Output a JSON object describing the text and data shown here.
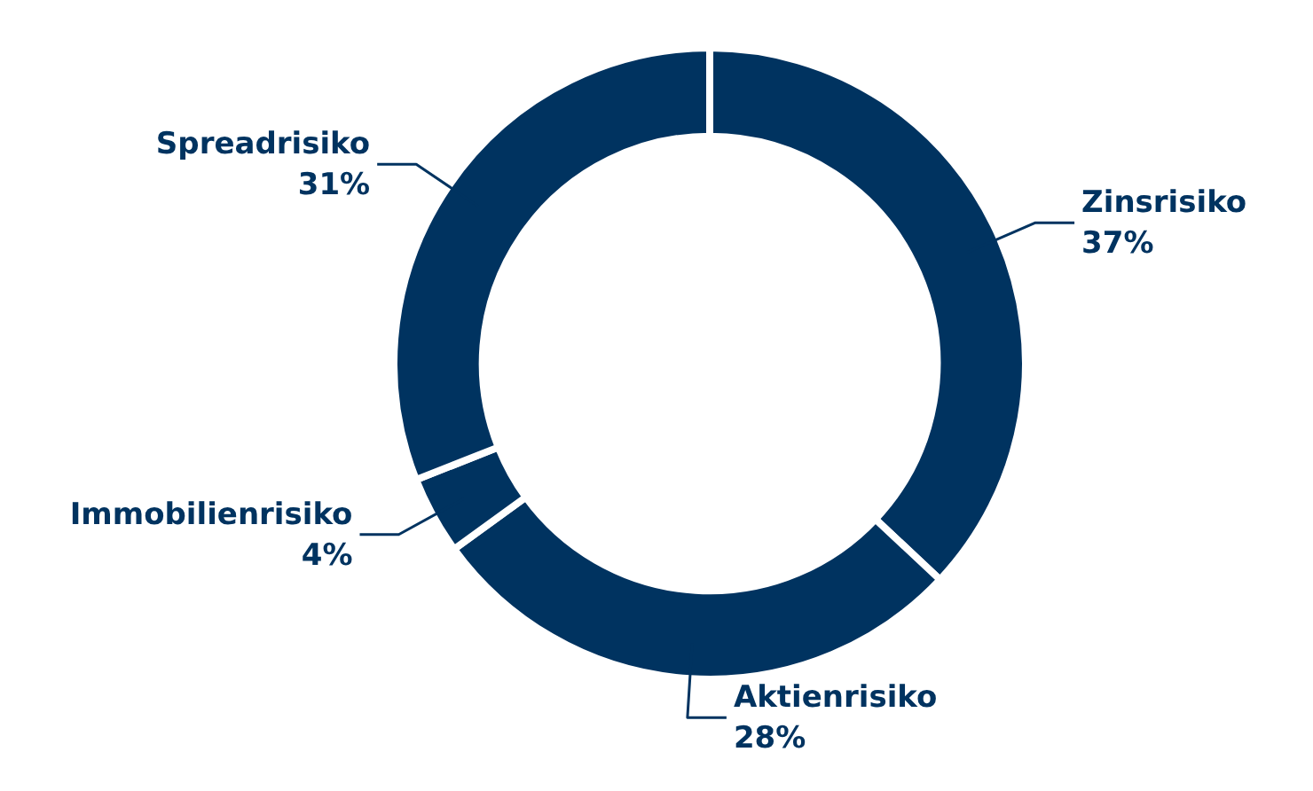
{
  "chart_data": {
    "type": "donut",
    "categories": [
      "Zinsrisiko",
      "Aktienrisiko",
      "Immobilienrisiko",
      "Spreadrisiko"
    ],
    "values": [
      37,
      28,
      4,
      31
    ],
    "value_labels": [
      "37%",
      "28%",
      "4%",
      "31%"
    ],
    "colors": [
      "#003360",
      "#003360",
      "#003360",
      "#003360"
    ]
  }
}
